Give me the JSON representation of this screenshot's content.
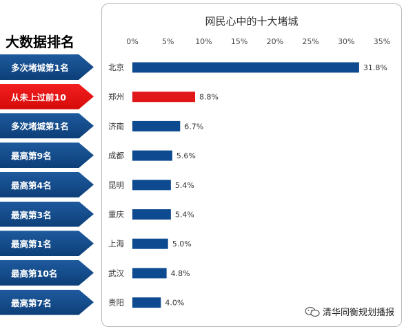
{
  "side_title": "大数据排名",
  "rank_tags": [
    {
      "label": "多次堵城第1名",
      "color": "blue"
    },
    {
      "label": "从未上过前10",
      "color": "red"
    },
    {
      "label": "多次堵城第1名",
      "color": "blue"
    },
    {
      "label": "最高第9名",
      "color": "blue"
    },
    {
      "label": "最高第4名",
      "color": "blue"
    },
    {
      "label": "最高第3名",
      "color": "blue"
    },
    {
      "label": "最高第1名",
      "color": "blue"
    },
    {
      "label": "最高第10名",
      "color": "blue"
    },
    {
      "label": "最高第7名",
      "color": "blue"
    }
  ],
  "watermark": {
    "text": "清华同衡规划播报",
    "icon": "wechat-icon"
  },
  "chart_data": {
    "type": "bar",
    "orientation": "horizontal",
    "title": "网民心中的十大堵城",
    "categories": [
      "北京",
      "郑州",
      "济南",
      "成都",
      "昆明",
      "重庆",
      "上海",
      "武汉",
      "贵阳"
    ],
    "values": [
      31.8,
      8.8,
      6.7,
      5.6,
      5.4,
      5.4,
      5.0,
      4.8,
      4.0
    ],
    "value_labels": [
      "31.8%",
      "8.8%",
      "6.7%",
      "5.6%",
      "5.4%",
      "5.4%",
      "5.0%",
      "4.8%",
      "4.0%"
    ],
    "xlim": [
      0,
      35
    ],
    "x_ticks": [
      0,
      5,
      10,
      15,
      20,
      25,
      30,
      35
    ],
    "x_tick_labels": [
      "0%",
      "5%",
      "10%",
      "15%",
      "20%",
      "25%",
      "30%",
      "35%"
    ],
    "axis_position": "top",
    "grid": false,
    "colors": {
      "default": "#0d4a8f",
      "highlight": "#e01818"
    },
    "highlight_index": 1
  }
}
